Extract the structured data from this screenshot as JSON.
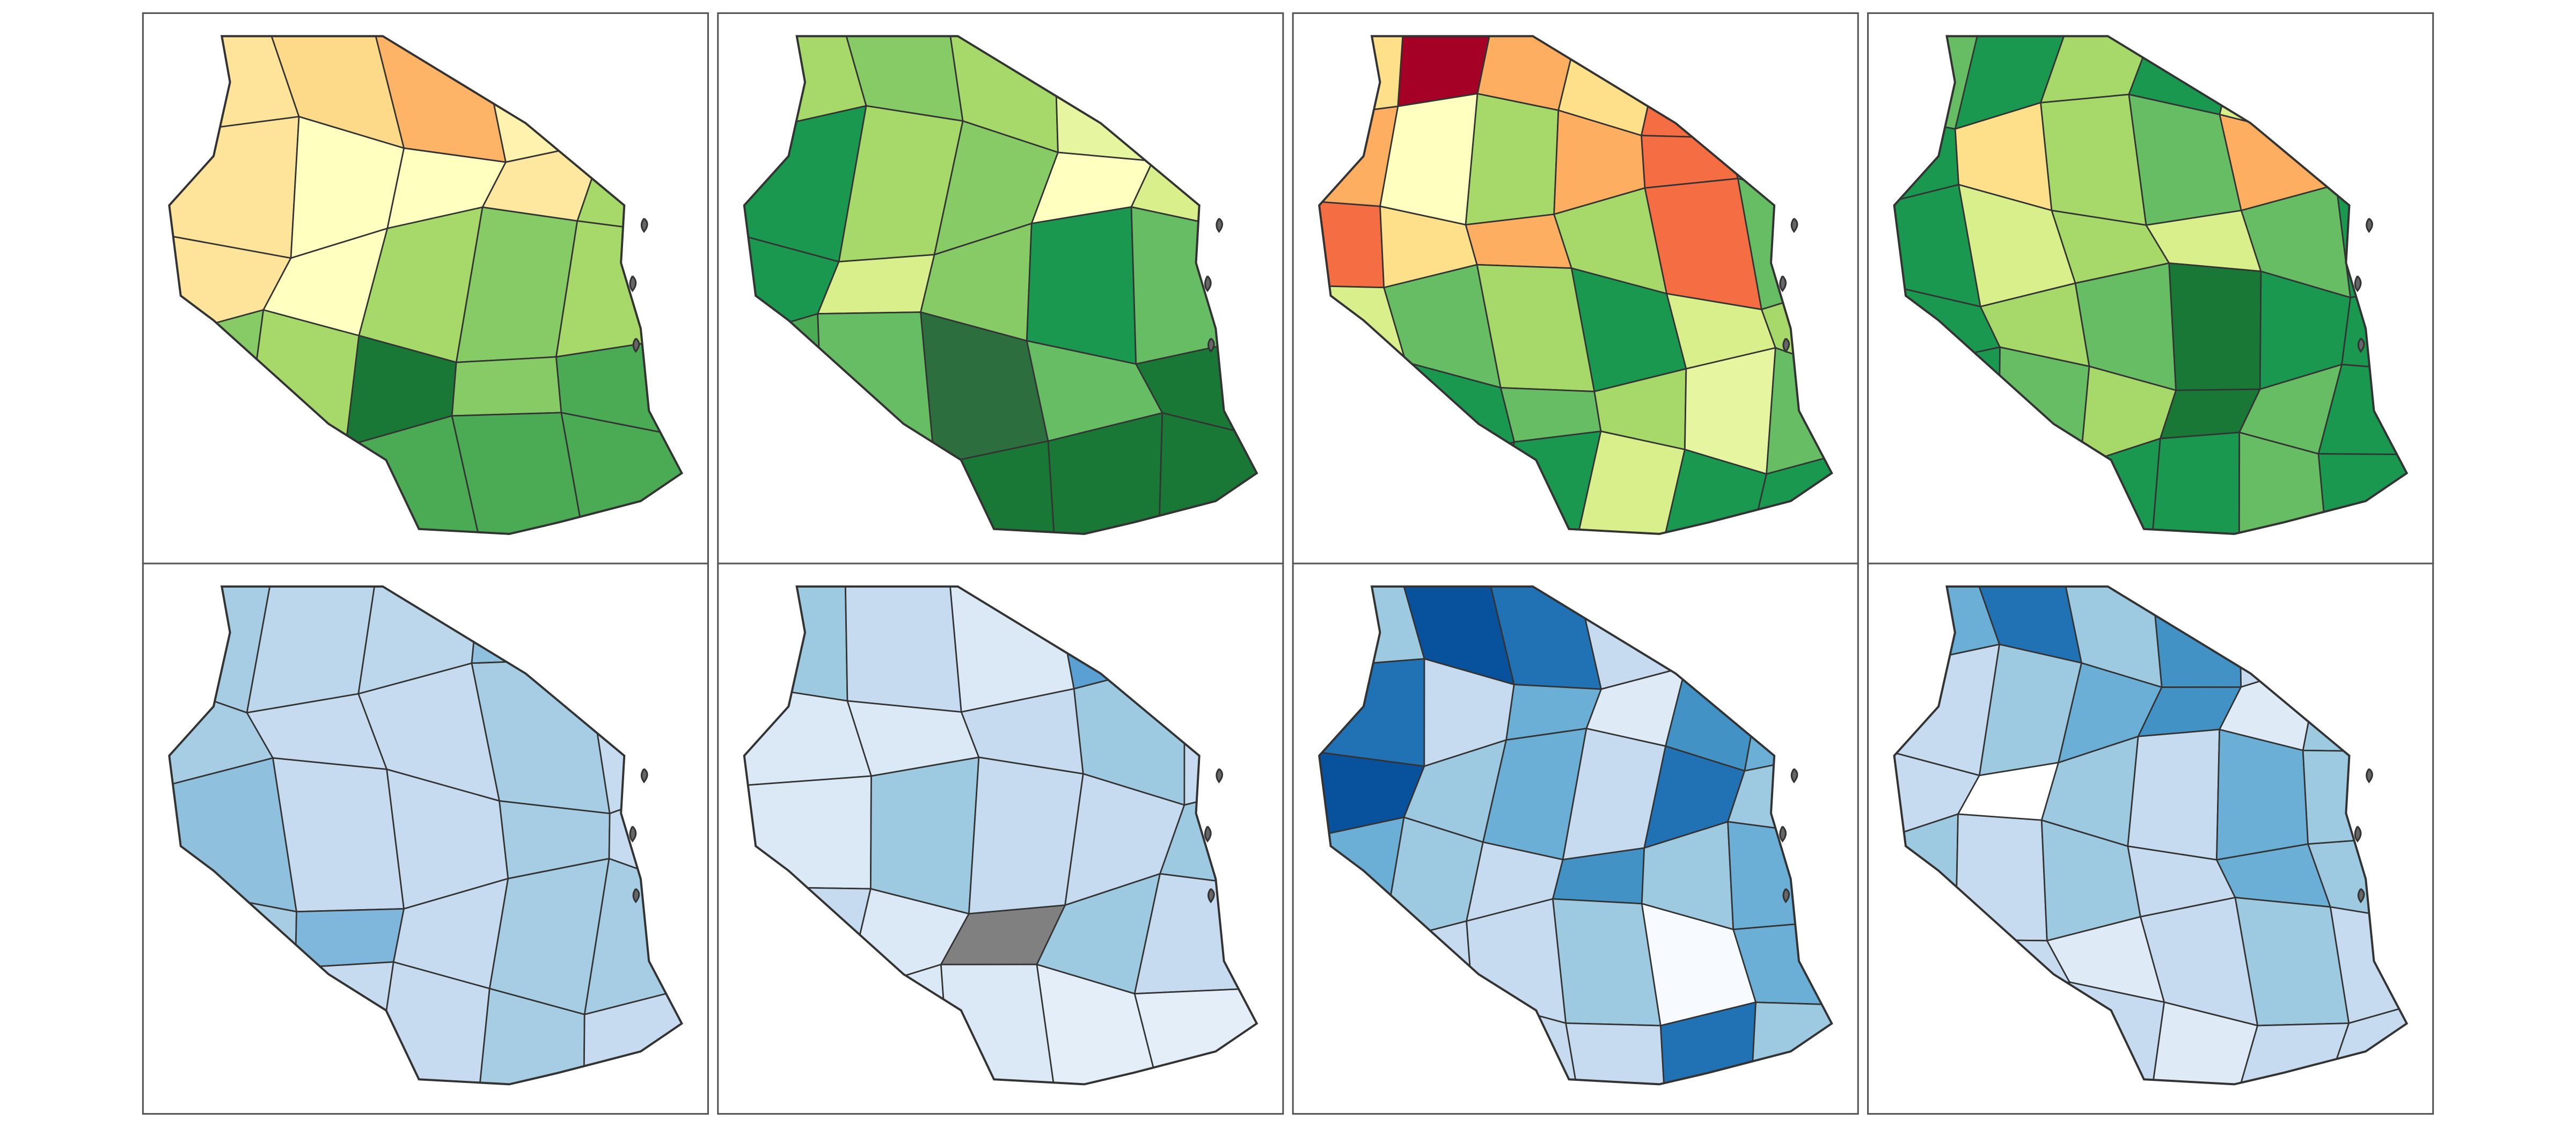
{
  "panels": [
    {
      "colors": [
        "#fee39a",
        "#fdd98a",
        "#fdb466",
        "#fff2ae",
        "#1a9850",
        "#fee39a",
        "#ffffbf",
        "#ffffbf",
        "#fee8a0",
        "#a6d96a",
        "#fee39a",
        "#ffffbf",
        "#a6d96a",
        "#86cb66",
        "#a6d96a",
        "#86cb66",
        "#a6d96a",
        "#1a7837",
        "#86cb66",
        "#4aab54",
        "#86cb66",
        "#4aab54",
        "#4aab54",
        "#4aab54",
        "#4aab54"
      ]
    },
    {
      "colors": [
        "#a6d96a",
        "#86cb66",
        "#a6d96a",
        "#e6f5a0",
        "#1a9850",
        "#1a9850",
        "#a6d96a",
        "#86cb66",
        "#ffffbf",
        "#d9ef8b",
        "#1a9850",
        "#d9ef8b",
        "#86cb66",
        "#1a9850",
        "#66bd63",
        "#4aab54",
        "#66bd63",
        "#2d6e3e",
        "#66bd63",
        "#1a7837",
        "#4aab54",
        "#1a7837",
        "#1a7837",
        "#1a7837",
        "#1a7837"
      ]
    },
    {
      "colors": [
        "#fee08b",
        "#a50026",
        "#fdae61",
        "#fee08b",
        "#f46d43",
        "#d9ef8b",
        "#fdae61",
        "#ffffbf",
        "#a6d96a",
        "#fdae61",
        "#f46d43",
        "#a6d96a",
        "#f46d43",
        "#fee08b",
        "#fdae61",
        "#a6d96a",
        "#f46d43",
        "#66bd63",
        "#d9ef8b",
        "#66bd63",
        "#a6d96a",
        "#1a9850",
        "#d9ef8b",
        "#a6d96a",
        "#66bd63",
        "#1a9850",
        "#66bd63",
        "#a6d96a",
        "#e6f5a0",
        "#66bd63",
        "#66bd63",
        "#1a9850",
        "#1a9850",
        "#d9ef8b",
        "#1a9850",
        "#1a9850"
      ]
    },
    {
      "colors": [
        "#66bd63",
        "#1a9850",
        "#a6d96a",
        "#1a9850",
        "#d9ef8b",
        "#66bd63",
        "#1a9850",
        "#fee08b",
        "#a6d96a",
        "#66bd63",
        "#fdae61",
        "#66bd63",
        "#1a9850",
        "#d9ef8b",
        "#a6d96a",
        "#d9ef8b",
        "#66bd63",
        "#1a9850",
        "#1a9850",
        "#a6d96a",
        "#66bd63",
        "#1a7837",
        "#1a9850",
        "#1a9850",
        "#1a9850",
        "#66bd63",
        "#a6d96a",
        "#1a7837",
        "#66bd63",
        "#1a9850",
        "#1a9850",
        "#1a9850",
        "#1a9850",
        "#1a9850",
        "#66bd63",
        "#1a9850"
      ]
    },
    {
      "colors": [
        "#a6cde3",
        "#bcd7eb",
        "#bcd7eb",
        "#8fc1de",
        "#d0e2f2",
        "#a6cde3",
        "#c6dbef",
        "#c6dbef",
        "#a6cde3",
        "#c6dbef",
        "#8fc1de",
        "#c6dbef",
        "#c6dbef",
        "#a6cde3",
        "#c6dbef",
        "#a6cde3",
        "#7fb6dc",
        "#c6dbef",
        "#a6cde3",
        "#a6cde3",
        "#c6dbef",
        "#c6dbef",
        "#c6dbef",
        "#a6cde3",
        "#c6dbef"
      ]
    },
    {
      "colors": [
        "#9ecae1",
        "#c6dbef",
        "#dbe9f6",
        "#5aa0d3",
        "#c6dbef",
        "#dbe9f6",
        "#dbe9f6",
        "#c6dbef",
        "#9ecae1",
        "#c6dbef",
        "#dbe9f6",
        "#9ecae1",
        "#c6dbef",
        "#c6dbef",
        "#9ecae1",
        "#c6dbef",
        "#dbe9f6",
        "#808080",
        "#9ecae1",
        "#c6dbef",
        "#e4eef9",
        "#dbe9f6",
        "#dbe9f6",
        "#e4eef9",
        "#e4eef9"
      ]
    },
    {
      "colors": [
        "#9ecae1",
        "#08519c",
        "#2171b5",
        "#c6dbef",
        "#2171b5",
        "#9ecae1",
        "#2171b5",
        "#c6dbef",
        "#6baed6",
        "#deebf7",
        "#4292c6",
        "#6baed6",
        "#08519c",
        "#9ecae1",
        "#6baed6",
        "#c6dbef",
        "#2171b5",
        "#9ecae1",
        "#6baed6",
        "#9ecae1",
        "#c6dbef",
        "#4292c6",
        "#9ecae1",
        "#6baed6",
        "#9ecae1",
        "#c6dbef",
        "#c6dbef",
        "#9ecae1",
        "#f7fbff",
        "#6baed6",
        "#c6dbef",
        "#9ecae1",
        "#c6dbef",
        "#c6dbef",
        "#2171b5",
        "#9ecae1"
      ]
    },
    {
      "colors": [
        "#6baed6",
        "#2171b5",
        "#9ecae1",
        "#4292c6",
        "#c6dbef",
        "#6baed6",
        "#c6dbef",
        "#9ecae1",
        "#6baed6",
        "#4292c6",
        "#deebf7",
        "#9ecae1",
        "#c6dbef",
        "#ffffff",
        "#9ecae1",
        "#c6dbef",
        "#6baed6",
        "#9ecae1",
        "#9ecae1",
        "#c6dbef",
        "#9ecae1",
        "#c6dbef",
        "#6baed6",
        "#9ecae1",
        "#c6dbef",
        "#c6dbef",
        "#deebf7",
        "#c6dbef",
        "#9ecae1",
        "#c6dbef",
        "#c6dbef",
        "#deebf7",
        "#c6dbef",
        "#deebf7",
        "#c6dbef",
        "#c6dbef"
      ]
    }
  ]
}
